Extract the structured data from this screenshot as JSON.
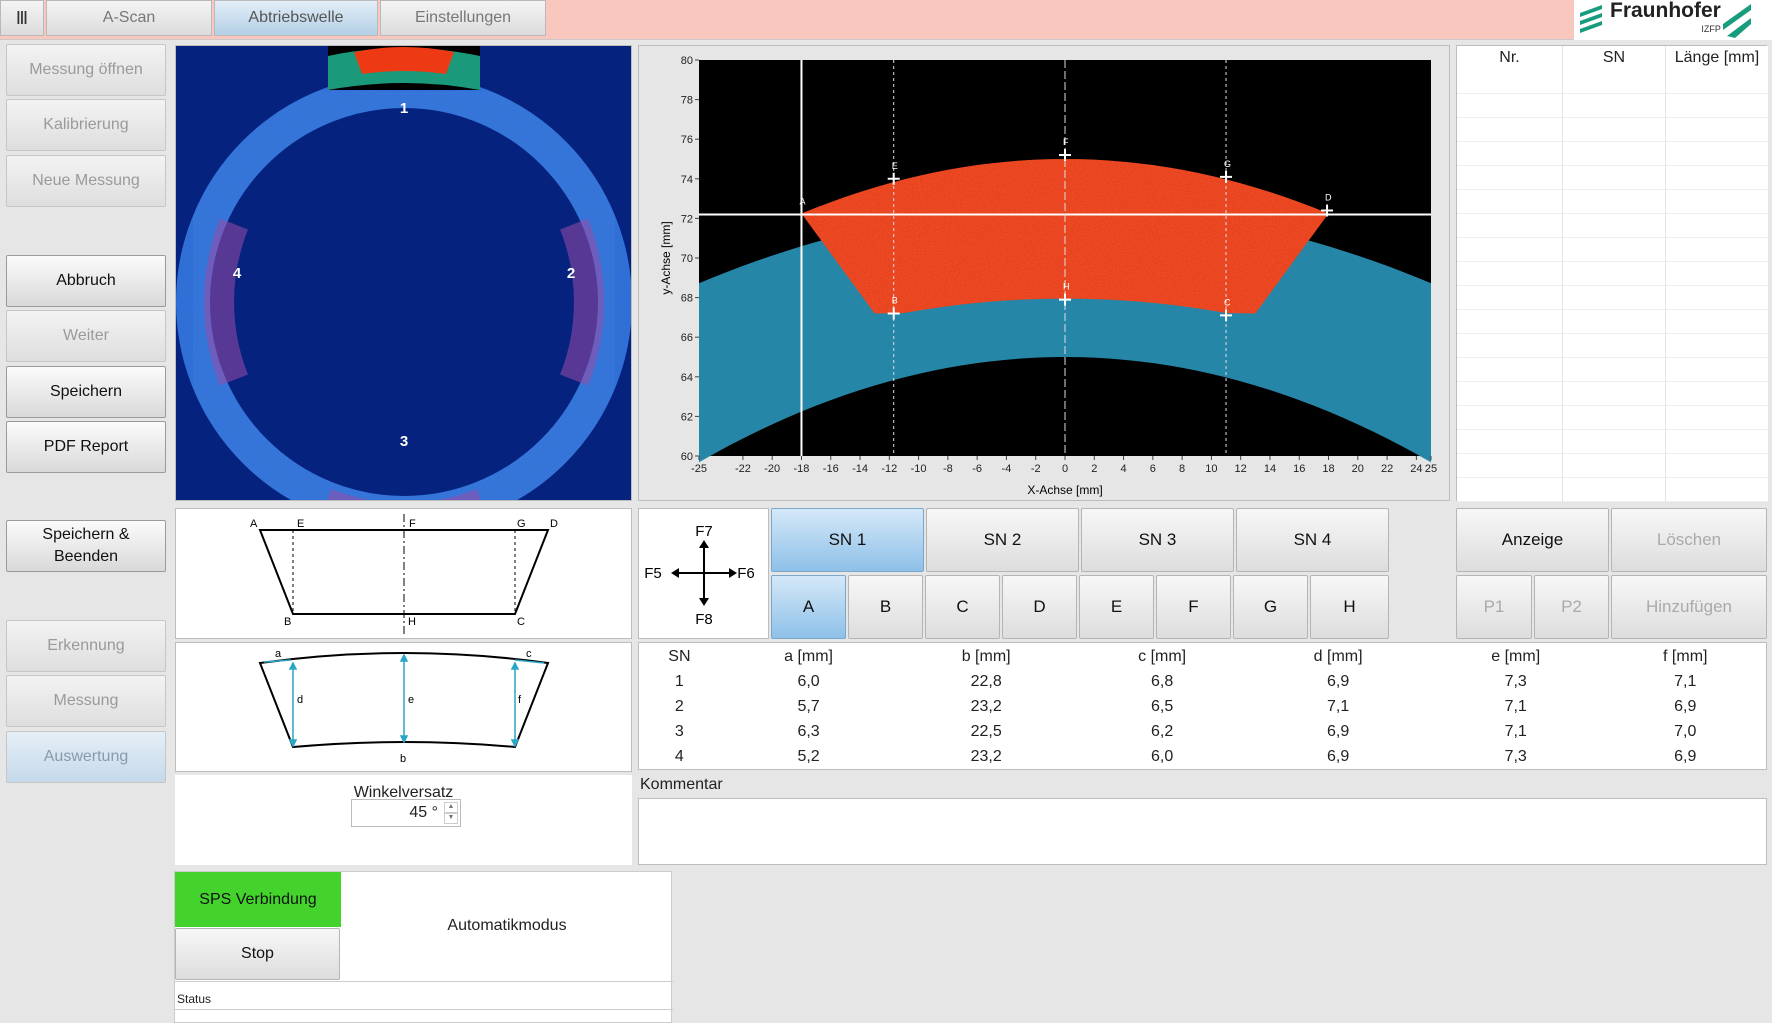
{
  "toolbar": {
    "menu_icon": "menu-bars-icon",
    "tabs": [
      {
        "label": "A-Scan"
      },
      {
        "label": "Abtriebswelle",
        "active": true
      },
      {
        "label": "Einstellungen"
      }
    ],
    "logo": {
      "name": "Fraunhofer",
      "sub": "IZFP"
    }
  },
  "sidebar": {
    "messung_oeffnen": "Messung öffnen",
    "kalibrierung": "Kalibrierung",
    "neue_messung": "Neue Messung",
    "abbruch": "Abbruch",
    "weiter": "Weiter",
    "speichern": "Speichern",
    "pdf_report": "PDF Report",
    "speichern_beenden_1": "Speichern &",
    "speichern_beenden_2": "Beenden",
    "erkennung": "Erkennung",
    "messung": "Messung",
    "auswertung": "Auswertung"
  },
  "ring": {
    "labels": [
      "1",
      "2",
      "3",
      "4"
    ]
  },
  "chart_data": {
    "type": "heatmap",
    "xlabel": "X-Achse [mm]",
    "ylabel": "y-Achse [mm]",
    "xlim": [
      -25,
      25
    ],
    "ylim": [
      60,
      80
    ],
    "xticks": [
      "-25",
      "-22",
      "-20",
      "-18",
      "-16",
      "-14",
      "-12",
      "-10",
      "-8",
      "-6",
      "-4",
      "-2",
      "0",
      "2",
      "4",
      "6",
      "8",
      "10",
      "12",
      "14",
      "16",
      "18",
      "20",
      "22",
      "24",
      "25"
    ],
    "yticks": [
      "80",
      "78",
      "76",
      "74",
      "72",
      "70",
      "68",
      "66",
      "64",
      "62",
      "60"
    ],
    "cursor": {
      "x": -18,
      "y": 72.2
    },
    "points": [
      {
        "label": "A",
        "x": -18,
        "y": 72.2
      },
      {
        "label": "E",
        "x": -11.7,
        "y": 74
      },
      {
        "label": "F",
        "x": 0,
        "y": 75.2
      },
      {
        "label": "G",
        "x": 11,
        "y": 74.1
      },
      {
        "label": "D",
        "x": 17.9,
        "y": 72.4
      },
      {
        "label": "B",
        "x": -11.7,
        "y": 67.2
      },
      {
        "label": "H",
        "x": 0,
        "y": 67.9
      },
      {
        "label": "C",
        "x": 11,
        "y": 67.1
      }
    ]
  },
  "results": {
    "headers": [
      "Nr.",
      "SN",
      "Länge [mm]"
    ]
  },
  "diagram1": {
    "labels": {
      "A": "A",
      "E": "E",
      "F": "F",
      "G": "G",
      "D": "D",
      "B": "B",
      "H": "H",
      "C": "C"
    }
  },
  "diagram2": {
    "labels": {
      "a": "a",
      "c": "c",
      "d": "d",
      "e": "e",
      "f": "f",
      "b": "b"
    }
  },
  "compass": {
    "n": "F7",
    "s": "F8",
    "w": "F5",
    "e": "F6"
  },
  "sn_buttons": [
    "SN 1",
    "SN 2",
    "SN 3",
    "SN 4"
  ],
  "point_buttons": [
    "A",
    "B",
    "C",
    "D",
    "E",
    "F",
    "G",
    "H"
  ],
  "right_buttons": {
    "anzeige": "Anzeige",
    "loeschen": "Löschen",
    "p1": "P1",
    "p2": "P2",
    "hinzufuegen": "Hinzufügen"
  },
  "measure_table": {
    "headers": [
      "SN",
      "a [mm]",
      "b [mm]",
      "c [mm]",
      "d [mm]",
      "e [mm]",
      "f [mm]"
    ],
    "rows": [
      [
        "1",
        "6,0",
        "22,8",
        "6,8",
        "6,9",
        "7,3",
        "7,1"
      ],
      [
        "2",
        "5,7",
        "23,2",
        "6,5",
        "7,1",
        "7,1",
        "6,9"
      ],
      [
        "3",
        "6,3",
        "22,5",
        "6,2",
        "6,9",
        "7,1",
        "7,0"
      ],
      [
        "4",
        "5,2",
        "23,2",
        "6,0",
        "6,9",
        "7,3",
        "6,9"
      ]
    ]
  },
  "winkel": {
    "label": "Winkelversatz",
    "value": "45 °"
  },
  "kommentar": {
    "label": "Kommentar",
    "value": ""
  },
  "sps": {
    "label": "SPS Verbindung",
    "stop": "Stop",
    "mode": "Automatikmodus",
    "status_label": "Status",
    "status_value": ""
  },
  "colors": {
    "sps_green": "#43d32c",
    "topbar": "#f9c7bd",
    "selected": "#9cc8ea"
  }
}
